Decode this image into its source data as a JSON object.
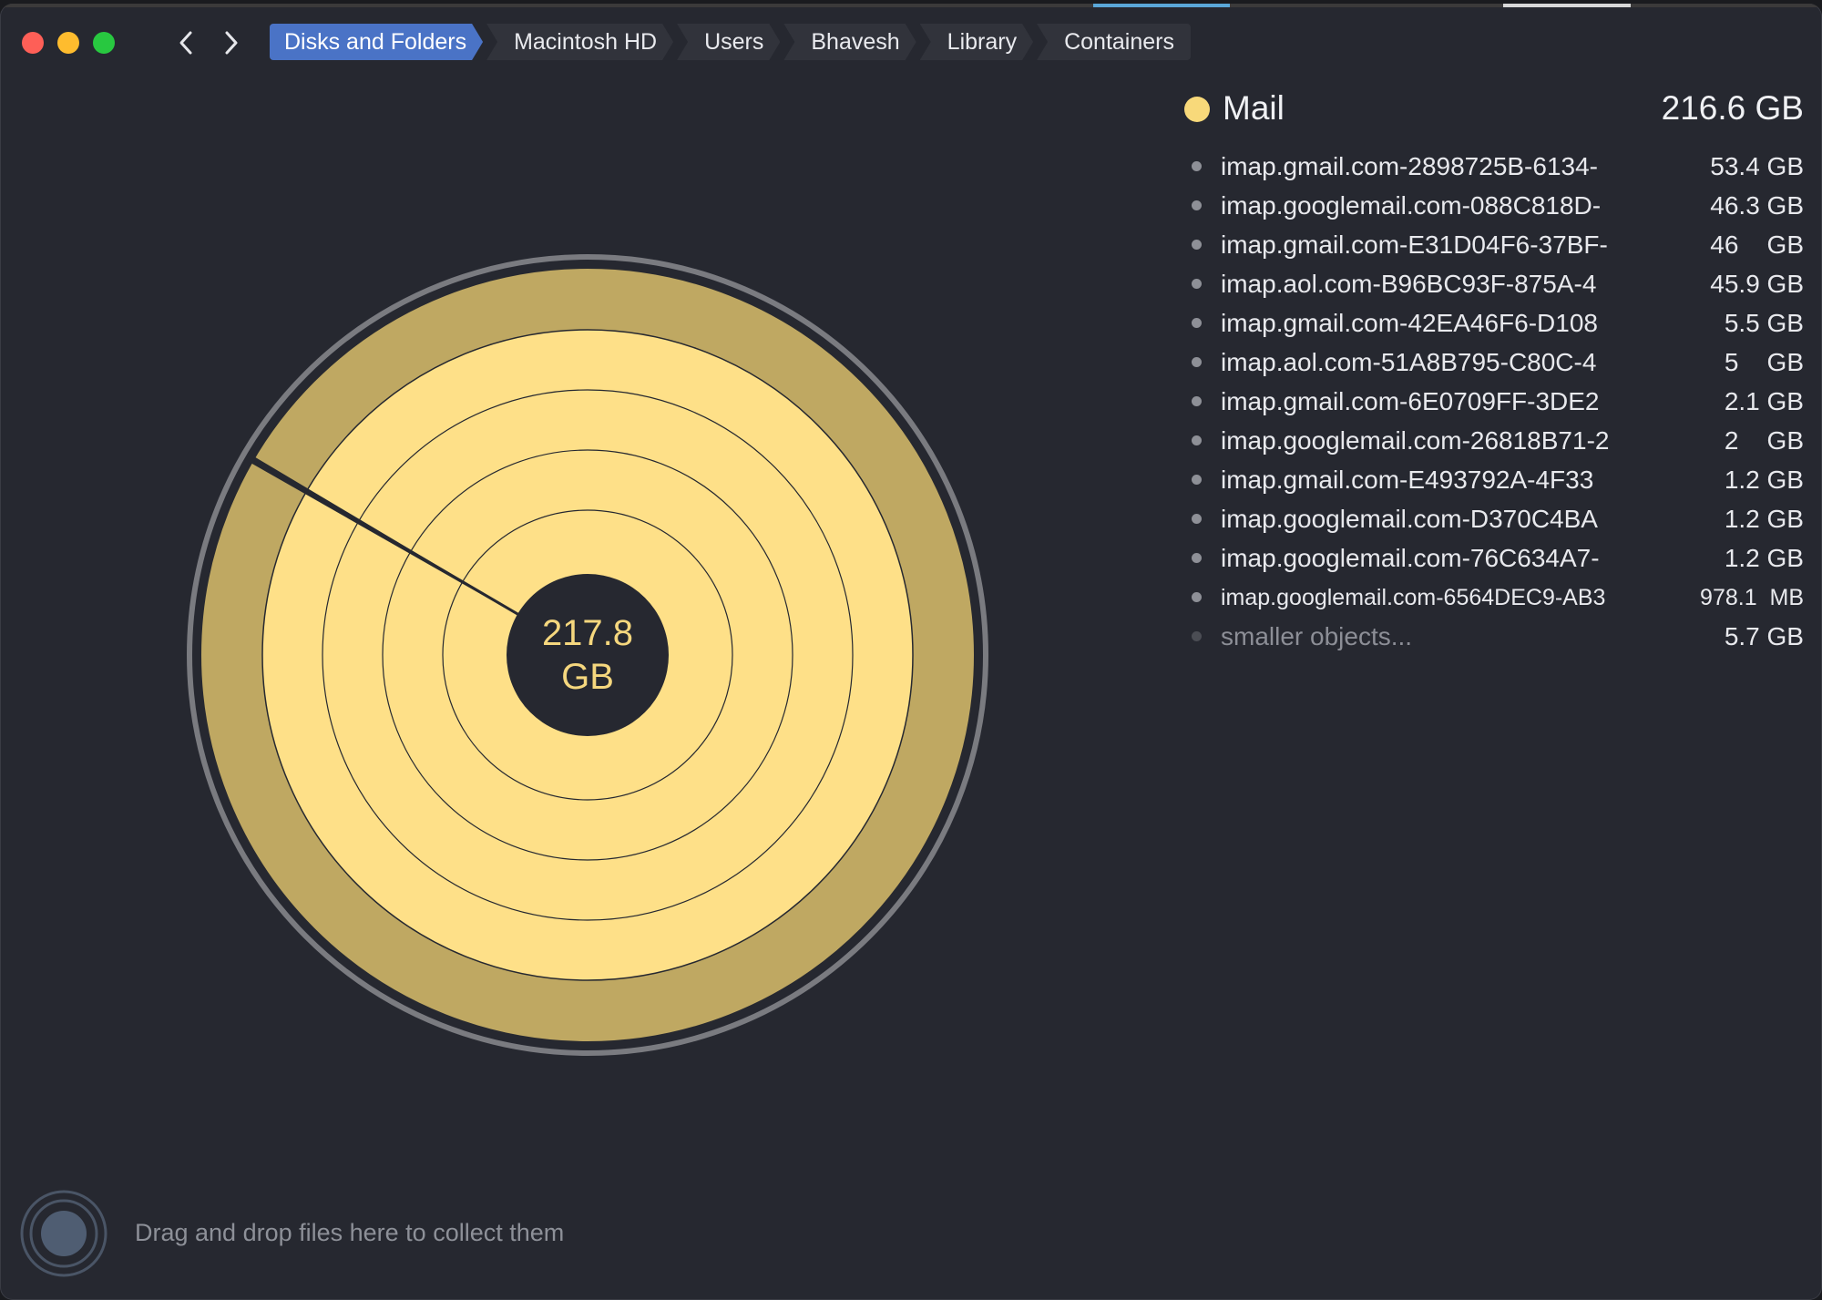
{
  "breadcrumb": [
    "Disks and Folders",
    "Macintosh HD",
    "Users",
    "Bhavesh",
    "Library",
    "Containers"
  ],
  "chart": {
    "center_value": "217.8",
    "center_unit": "GB",
    "colors": {
      "inner_rings": "#fee088",
      "outer_ring": "#bfa862",
      "outline": "#7a7b80",
      "background": "#262830"
    }
  },
  "legend": {
    "title": "Mail",
    "total": "216.6 GB",
    "color": "#f8d97a"
  },
  "items": [
    {
      "name": "imap.gmail.com-2898725B-6134-",
      "size": "53.4 GB"
    },
    {
      "name": "imap.googlemail.com-088C818D-",
      "size": "46.3 GB"
    },
    {
      "name": "imap.gmail.com-E31D04F6-37BF-",
      "size": "46    GB"
    },
    {
      "name": "imap.aol.com-B96BC93F-875A-4",
      "size": "45.9 GB"
    },
    {
      "name": "imap.gmail.com-42EA46F6-D108",
      "size": "5.5 GB"
    },
    {
      "name": "imap.aol.com-51A8B795-C80C-4",
      "size": "5    GB"
    },
    {
      "name": "imap.gmail.com-6E0709FF-3DE2",
      "size": "2.1 GB"
    },
    {
      "name": "imap.googlemail.com-26818B71-2",
      "size": "2    GB"
    },
    {
      "name": "imap.gmail.com-E493792A-4F33",
      "size": "1.2 GB"
    },
    {
      "name": "imap.googlemail.com-D370C4BA",
      "size": "1.2 GB"
    },
    {
      "name": "imap.googlemail.com-76C634A7-",
      "size": "1.2 GB"
    },
    {
      "name": "imap.googlemail.com-6564DEC9-AB3",
      "size": "978.1  MB"
    },
    {
      "name": "smaller objects...",
      "size": "5.7 GB"
    }
  ],
  "footer": {
    "drop_hint": "Drag and drop files here to collect them"
  },
  "icons": {
    "back": "chevron-left-icon",
    "forward": "chevron-right-icon",
    "collector": "collector-icon"
  }
}
